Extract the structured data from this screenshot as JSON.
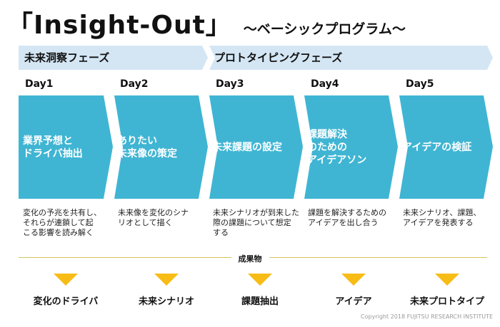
{
  "header": {
    "title": "「Insight-Out」",
    "subtitle": "～ベーシックプログラム～"
  },
  "phases": [
    {
      "label": "未来洞察フェーズ"
    },
    {
      "label": "プロトタイピングフェーズ"
    }
  ],
  "days": [
    {
      "day": "Day1",
      "title": "業界予想と\nドライバ抽出",
      "description": "変化の予兆を共有し、\nそれらが連鎖して起\nこる影響を読み解く"
    },
    {
      "day": "Day2",
      "title": "ありたい\n未来像の策定",
      "description": "未来像を変化のシナ\nリオとして描く"
    },
    {
      "day": "Day3",
      "title": "未来課題の設定",
      "description": "未来シナリオが到来した\n際の課題について想定\nする"
    },
    {
      "day": "Day4",
      "title": "課題解決\nのための\nアイデアソン",
      "description": "課題を解決するための\nアイデアを出し合う"
    },
    {
      "day": "Day5",
      "title": "アイデアの検証",
      "description": "未来シナリオ、課題、\nアイデアを発表する"
    }
  ],
  "deliverables": {
    "heading": "成果物",
    "items": [
      "変化のドライバ",
      "未来シナリオ",
      "課題抽出",
      "アイデア",
      "未来プロトタイプ"
    ]
  },
  "copyright": "Copyright 2018 FUJITSU RESEARCH INSTITUTE",
  "colors": {
    "chevron": "#3fb5d3",
    "phase_bar": "#d4e6f4",
    "triangle": "#f7bc16",
    "separator": "#d8c35c"
  }
}
